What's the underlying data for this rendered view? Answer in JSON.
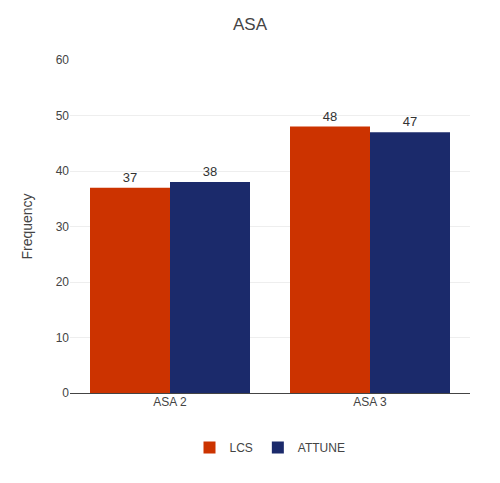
{
  "chart_data": {
    "type": "bar",
    "title": "ASA",
    "ylabel": "Frequency",
    "categories": [
      "ASA 2",
      "ASA 3"
    ],
    "series": [
      {
        "name": "LCS",
        "color": "#CC3300",
        "values": [
          37,
          48
        ]
      },
      {
        "name": "ATTUNE",
        "color": "#1B2A6B",
        "values": [
          38,
          47
        ]
      }
    ],
    "ylim": [
      0,
      60
    ],
    "yticks": [
      0,
      10,
      20,
      30,
      40,
      50,
      60
    ],
    "grid": true,
    "data_labels": true,
    "legend": "bottom"
  }
}
